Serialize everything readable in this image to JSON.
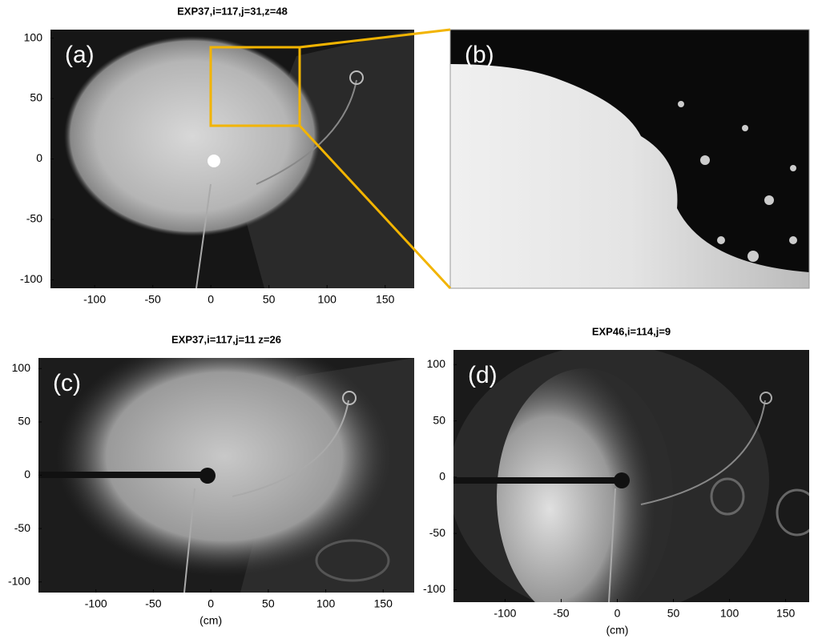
{
  "panels": [
    {
      "title": "EXP37,i=117,j=31,z=48",
      "label": "(a)",
      "xlim": [
        -138,
        175
      ],
      "ylim": [
        -107,
        107
      ],
      "xticks": [
        -100,
        -50,
        0,
        50,
        100,
        150
      ],
      "yticks": [
        100,
        50,
        0,
        -50,
        -100
      ]
    },
    {
      "label": "(b)"
    },
    {
      "title": "EXP37,i=117,j=11 z=26",
      "label": "(c)",
      "xlabel": "(cm)",
      "xlim": [
        -150,
        177
      ],
      "ylim": [
        -110,
        110
      ],
      "xticks": [
        -100,
        -50,
        0,
        50,
        100,
        150
      ],
      "yticks": [
        100,
        50,
        0,
        -50,
        -100
      ]
    },
    {
      "title": "EXP46,i=114,j=9",
      "label": "(d)",
      "xlabel": "(cm)",
      "xlim": [
        -146,
        171
      ],
      "ylim": [
        -111,
        113
      ],
      "xticks": [
        -100,
        -50,
        0,
        50,
        100,
        150
      ],
      "yticks": [
        100,
        50,
        0,
        -50,
        -100
      ]
    }
  ]
}
